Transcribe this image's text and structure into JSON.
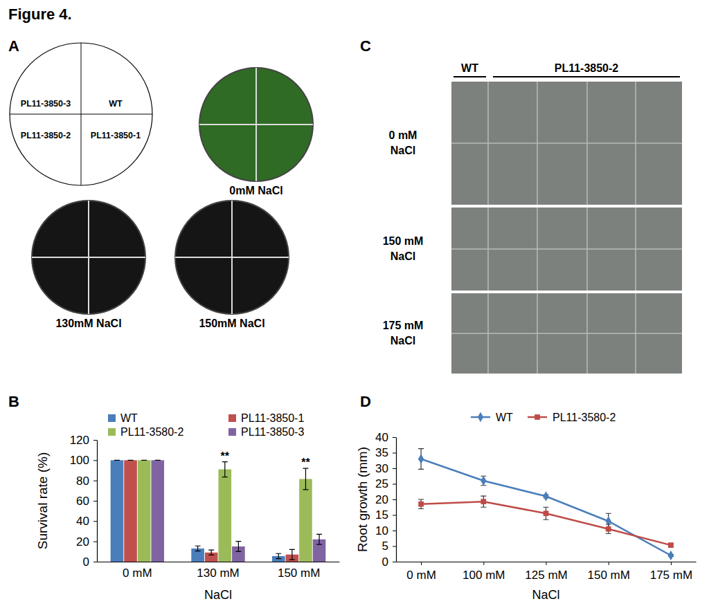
{
  "figure_title": "Figure 4.",
  "panel_a": {
    "label": "A",
    "diagram_labels": [
      "PL11-3850-3",
      "WT",
      "PL11-3850-2",
      "PL11-3850-1"
    ],
    "plates": [
      "0mM NaCl",
      "130mM NaCl",
      "150mM NaCl"
    ]
  },
  "panel_c": {
    "label": "C",
    "column_headers": [
      "WT",
      "PL11-3850-2"
    ],
    "row_labels": [
      [
        "0 mM",
        "NaCl"
      ],
      [
        "150 mM",
        "NaCl"
      ],
      [
        "175 mM",
        "NaCl"
      ]
    ]
  },
  "chart_data": [
    {
      "panel": "B",
      "type": "bar",
      "x_label": "NaCl",
      "y_label": "Survival rate (%)",
      "categories": [
        "0 mM",
        "130 mM",
        "150 mM"
      ],
      "series": [
        {
          "name": "WT",
          "color": "#4a7ebb",
          "values": [
            100,
            13,
            5.5
          ],
          "errors": [
            0,
            2.5,
            2.5
          ]
        },
        {
          "name": "PL11-3850-1",
          "color": "#c0504d",
          "values": [
            100,
            9,
            7
          ],
          "errors": [
            0,
            2.5,
            5
          ]
        },
        {
          "name": "PL11-3580-2",
          "color": "#9bbb59",
          "values": [
            100,
            91,
            81.5
          ],
          "errors": [
            0,
            7.5,
            10.5
          ],
          "significance": [
            null,
            "**",
            "**"
          ]
        },
        {
          "name": "PL11-3850-3",
          "color": "#8064a2",
          "values": [
            100,
            15,
            22
          ],
          "errors": [
            0,
            5,
            5
          ]
        }
      ],
      "ylim": [
        0,
        120
      ],
      "yticks": [
        0,
        20,
        40,
        60,
        80,
        100,
        120
      ],
      "grid": false,
      "legend": "top"
    },
    {
      "panel": "D",
      "type": "line",
      "x_label": "NaCl",
      "y_label": "Root growth (mm)",
      "categories": [
        "0 mM",
        "100 mM",
        "125 mM",
        "150 mM",
        "175 mM"
      ],
      "series": [
        {
          "name": "WT",
          "color": "#4a7ebb",
          "marker": "diamond",
          "values": [
            33,
            26,
            21,
            13,
            2
          ],
          "errors": [
            3.3,
            1.5,
            0.5,
            2.5,
            0.3
          ]
        },
        {
          "name": "PL11-3580-2",
          "color": "#be4b48",
          "marker": "square",
          "values": [
            18.5,
            19.3,
            15.5,
            10.5,
            5.3
          ],
          "errors": [
            1.5,
            1.8,
            2,
            1.5,
            0.5
          ]
        }
      ],
      "ylim": [
        0,
        40
      ],
      "yticks": [
        0,
        5,
        10,
        15,
        20,
        25,
        30,
        35,
        40
      ],
      "grid": false,
      "legend": "top"
    }
  ]
}
